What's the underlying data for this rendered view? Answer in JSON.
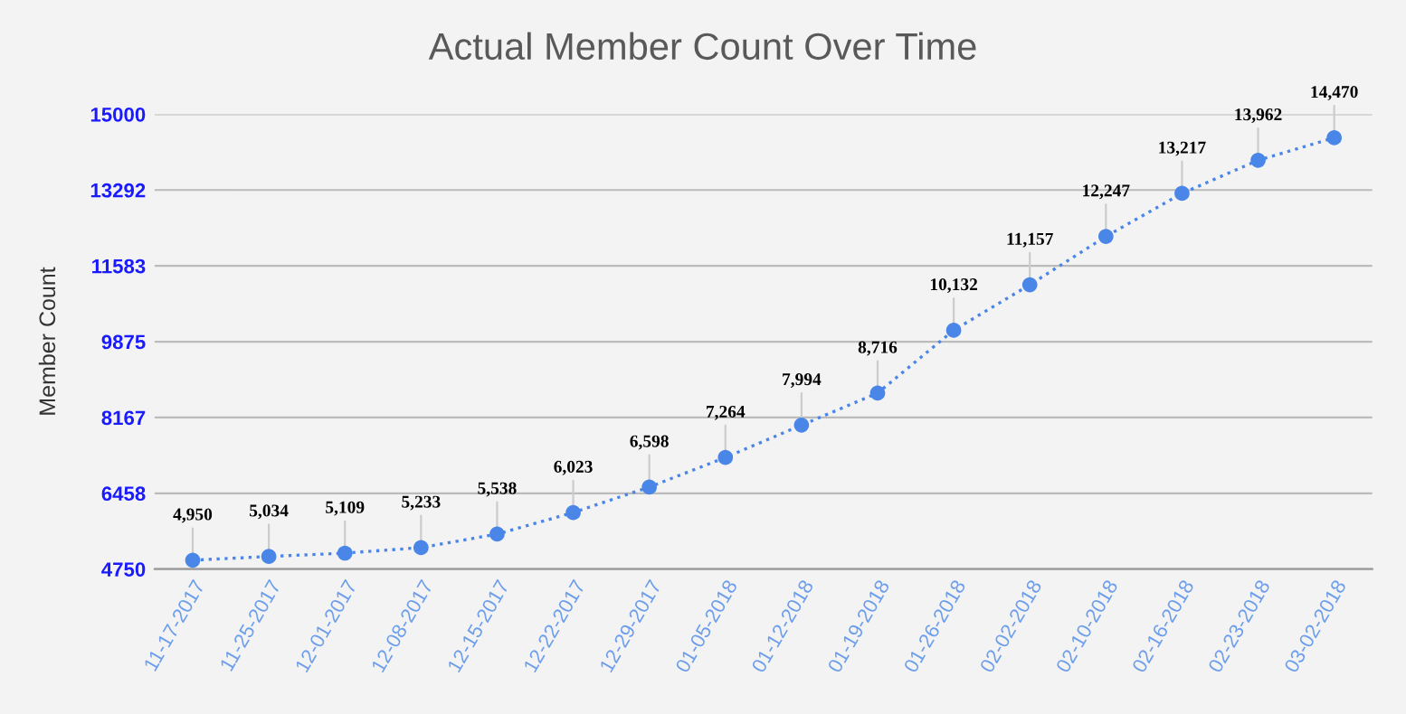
{
  "chart_data": {
    "type": "line",
    "title": "Actual Member Count Over Time",
    "ylabel": "Member Count",
    "categories": [
      "11-17-2017",
      "11-25-2017",
      "12-01-2017",
      "12-08-2017",
      "12-15-2017",
      "12-22-2017",
      "12-29-2017",
      "01-05-2018",
      "01-12-2018",
      "01-19-2018",
      "01-26-2018",
      "02-02-2018",
      "02-10-2018",
      "02-16-2018",
      "02-23-2018",
      "03-02-2018"
    ],
    "series": [
      {
        "color": "#4a86e8",
        "values": [
          4950,
          5034,
          5109,
          5233,
          5538,
          6023,
          6598,
          7264,
          7994,
          8716,
          10132,
          11157,
          12247,
          13217,
          13962,
          14470
        ],
        "value_labels": [
          "4,950",
          "5,034",
          "5,109",
          "5,233",
          "5,538",
          "6,023",
          "6,598",
          "7,264",
          "7,994",
          "8,716",
          "10,132",
          "11,157",
          "12,247",
          "13,217",
          "13,962",
          "14,470"
        ]
      }
    ],
    "ylim": [
      4750,
      15000
    ],
    "yticks": [
      4750,
      6458,
      8167,
      9875,
      11583,
      13292,
      15000
    ],
    "grid": "y",
    "marker": "circle",
    "line_style": "dotted",
    "legend": false
  }
}
